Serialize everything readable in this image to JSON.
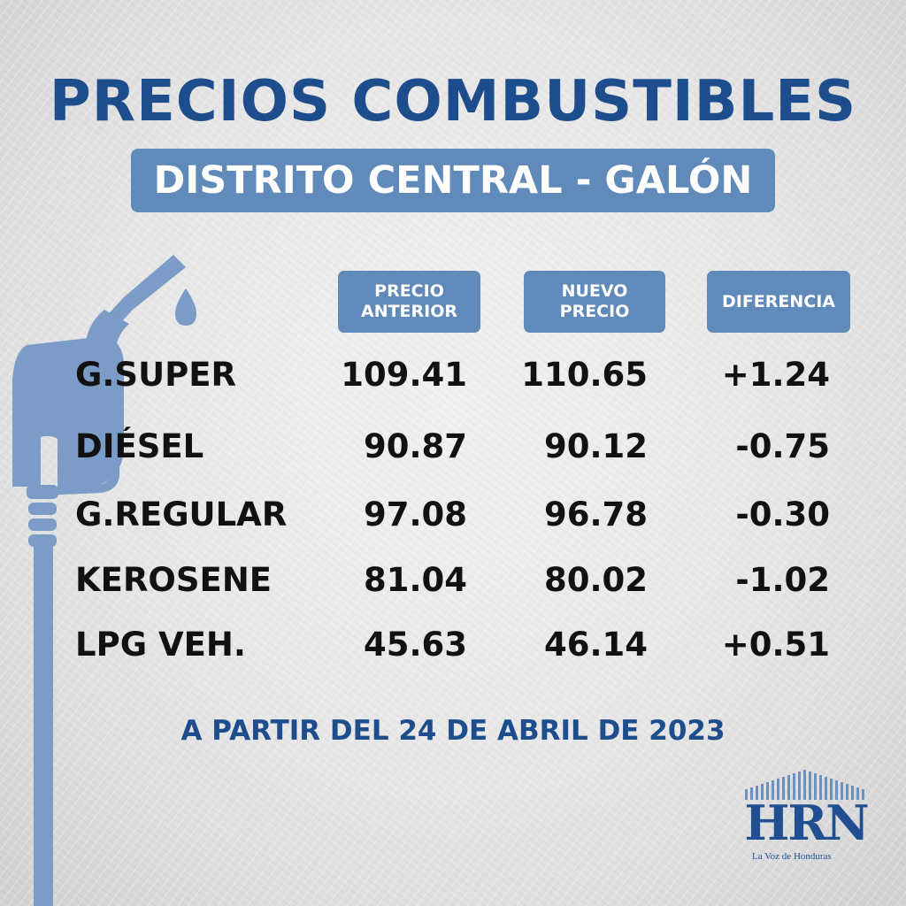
{
  "header": {
    "title": "PRECIOS COMBUSTIBLES",
    "subtitle": "DISTRITO CENTRAL - GALÓN"
  },
  "columns": {
    "previous": "PRECIO\nANTERIOR",
    "new": "NUEVO\nPRECIO",
    "difference": "DIFERENCIA"
  },
  "rows": [
    {
      "fuel": "G.SUPER",
      "previous": "109.41",
      "new": "110.65",
      "difference": "+1.24"
    },
    {
      "fuel": "DIÉSEL",
      "previous": "90.87",
      "new": "90.12",
      "difference": "-0.75"
    },
    {
      "fuel": "G.REGULAR",
      "previous": "97.08",
      "new": "96.78",
      "difference": "-0.30"
    },
    {
      "fuel": "KEROSENE",
      "previous": "81.04",
      "new": "80.02",
      "difference": "-1.02"
    },
    {
      "fuel": "LPG VEH.",
      "previous": "45.63",
      "new": "46.14",
      "difference": "+0.51"
    }
  ],
  "footer": {
    "effective_date": "A PARTIR DEL 24 DE ABRIL DE 2023"
  },
  "logo": {
    "name": "HRN",
    "tagline": "La Voz de Honduras"
  },
  "colors": {
    "title_blue": "#1d4d8c",
    "box_blue": "#5f8ab9",
    "nozzle_blue": "#7a9cc6"
  },
  "icons": [
    "fuel-nozzle-icon",
    "fuel-drop-icon",
    "signal-bars-icon"
  ]
}
